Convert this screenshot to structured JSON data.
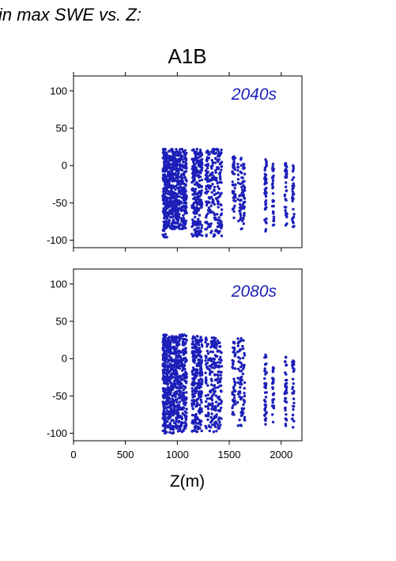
{
  "page": {
    "heading": "in max SWE vs. Z:"
  },
  "chart_data": {
    "type": "scatter",
    "title": "A1B",
    "xlabel": "Z(m)",
    "ylabel": "",
    "xlim": [
      0,
      2200
    ],
    "ylim": [
      -110,
      120
    ],
    "x_ticks": [
      "0",
      "500",
      "1000",
      "1500",
      "2000"
    ],
    "y_ticks": [
      "100",
      "50",
      "0",
      "-50",
      "-100"
    ],
    "grid": false,
    "point_color": "#1c1fb8",
    "panels": [
      {
        "label": "2040s",
        "clusters": [
          {
            "x_range": [
              860,
              900
            ],
            "y_range": [
              -96,
              22
            ],
            "n": 160
          },
          {
            "x_range": [
              900,
              1000
            ],
            "y_range": [
              -85,
              22
            ],
            "n": 320
          },
          {
            "x_range": [
              1000,
              1090
            ],
            "y_range": [
              -85,
              22
            ],
            "n": 230
          },
          {
            "x_range": [
              1140,
              1240
            ],
            "y_range": [
              -95,
              22
            ],
            "n": 240
          },
          {
            "x_range": [
              1270,
              1430
            ],
            "y_range": [
              -95,
              22
            ],
            "n": 220
          },
          {
            "x_range": [
              1530,
              1560
            ],
            "y_range": [
              -70,
              12
            ],
            "n": 45
          },
          {
            "x_range": [
              1580,
              1650
            ],
            "y_range": [
              -85,
              10
            ],
            "n": 70
          },
          {
            "x_range": [
              1840,
              1860
            ],
            "y_range": [
              -88,
              8
            ],
            "n": 40
          },
          {
            "x_range": [
              1915,
              1930
            ],
            "y_range": [
              -80,
              2
            ],
            "n": 30
          },
          {
            "x_range": [
              2035,
              2055
            ],
            "y_range": [
              -80,
              3
            ],
            "n": 35
          },
          {
            "x_range": [
              2105,
              2125
            ],
            "y_range": [
              -82,
              0
            ],
            "n": 30
          }
        ]
      },
      {
        "label": "2080s",
        "clusters": [
          {
            "x_range": [
              860,
              900
            ],
            "y_range": [
              -100,
              32
            ],
            "n": 170
          },
          {
            "x_range": [
              900,
              1000
            ],
            "y_range": [
              -100,
              30
            ],
            "n": 330
          },
          {
            "x_range": [
              1000,
              1090
            ],
            "y_range": [
              -98,
              32
            ],
            "n": 240
          },
          {
            "x_range": [
              1140,
              1240
            ],
            "y_range": [
              -98,
              30
            ],
            "n": 250
          },
          {
            "x_range": [
              1270,
              1430
            ],
            "y_range": [
              -98,
              28
            ],
            "n": 220
          },
          {
            "x_range": [
              1530,
              1560
            ],
            "y_range": [
              -75,
              22
            ],
            "n": 45
          },
          {
            "x_range": [
              1580,
              1650
            ],
            "y_range": [
              -90,
              27
            ],
            "n": 75
          },
          {
            "x_range": [
              1840,
              1860
            ],
            "y_range": [
              -88,
              5
            ],
            "n": 40
          },
          {
            "x_range": [
              1915,
              1930
            ],
            "y_range": [
              -85,
              -12
            ],
            "n": 30
          },
          {
            "x_range": [
              2035,
              2055
            ],
            "y_range": [
              -90,
              2
            ],
            "n": 35
          },
          {
            "x_range": [
              2105,
              2125
            ],
            "y_range": [
              -92,
              -3
            ],
            "n": 30
          }
        ]
      }
    ]
  }
}
